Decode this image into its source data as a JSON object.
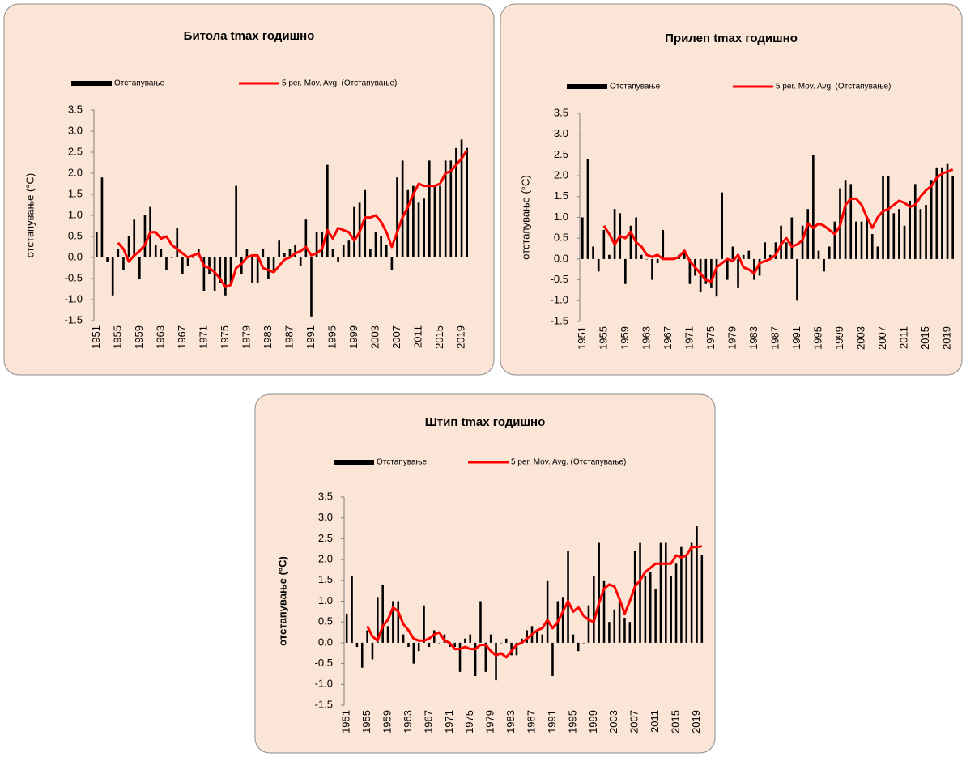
{
  "chart_data": [
    {
      "type": "bar",
      "title": "Битола  tmax годишно",
      "y_label": "отстапување (°C)",
      "categories": [
        "1951",
        null,
        null,
        null,
        "1955",
        null,
        null,
        null,
        "1959",
        null,
        null,
        null,
        "1963",
        null,
        null,
        null,
        "1967",
        null,
        null,
        null,
        "1971",
        null,
        null,
        null,
        "1975",
        null,
        null,
        null,
        "1979",
        null,
        null,
        null,
        "1983",
        null,
        null,
        null,
        "1987",
        null,
        null,
        null,
        "1991",
        null,
        null,
        null,
        "1995",
        null,
        null,
        null,
        "1999",
        null,
        null,
        null,
        "2003",
        null,
        null,
        null,
        "2007",
        null,
        null,
        null,
        "2011",
        null,
        null,
        null,
        "2015",
        null,
        null,
        null,
        "2019",
        null
      ],
      "series": [
        {
          "name": "Отстапување",
          "color": "#000000",
          "type": "bar",
          "values": [
            0.6,
            1.9,
            -0.1,
            -0.9,
            0.2,
            -0.3,
            0.5,
            0.9,
            -0.5,
            1.0,
            1.2,
            0.3,
            0.2,
            -0.3,
            0.0,
            0.7,
            -0.4,
            -0.2,
            0.0,
            0.2,
            -0.8,
            -0.4,
            -0.8,
            -0.6,
            -0.9,
            -0.6,
            1.7,
            -0.4,
            0.2,
            -0.6,
            -0.6,
            0.2,
            -0.5,
            -0.3,
            0.4,
            0.1,
            0.2,
            0.3,
            -0.2,
            0.9,
            -1.4,
            0.6,
            0.6,
            2.2,
            0.2,
            -0.1,
            0.3,
            0.4,
            1.2,
            1.3,
            1.6,
            0.2,
            0.6,
            0.5,
            0.3,
            -0.3,
            1.9,
            2.3,
            1.6,
            1.7,
            1.3,
            1.4,
            2.3,
            1.7,
            1.7,
            2.3,
            2.3,
            2.6,
            2.8,
            2.6
          ]
        },
        {
          "name": "5 per. Mov. Avg. (Отстапување)",
          "color": "#ff0000",
          "type": "line",
          "values": [
            null,
            null,
            null,
            null,
            0.35,
            0.2,
            -0.1,
            0.05,
            0.15,
            0.3,
            0.6,
            0.6,
            0.45,
            0.5,
            0.3,
            0.2,
            0.1,
            0.0,
            0.05,
            0.1,
            -0.2,
            -0.25,
            -0.35,
            -0.5,
            -0.7,
            -0.65,
            -0.25,
            -0.15,
            0.0,
            0.05,
            0.05,
            -0.25,
            -0.3,
            -0.35,
            -0.2,
            -0.05,
            0.0,
            0.1,
            0.15,
            0.25,
            0.05,
            0.1,
            0.2,
            0.65,
            0.45,
            0.7,
            0.65,
            0.6,
            0.4,
            0.6,
            0.95,
            0.95,
            1.0,
            0.85,
            0.6,
            0.25,
            0.6,
            0.95,
            1.2,
            1.5,
            1.75,
            1.7,
            1.7,
            1.7,
            1.75,
            2.0,
            2.05,
            2.2,
            2.35,
            2.55
          ]
        }
      ],
      "ylim": [
        -1.5,
        3.5
      ],
      "yticks": [
        -1.5,
        {
          "value": -1,
          "label": "-1.0"
        },
        -0.5,
        {
          "value": 0,
          "label": "0.0"
        },
        0.5,
        {
          "value": 1,
          "label": "1.0"
        },
        1.5,
        {
          "value": 2,
          "label": "2.0"
        },
        2.5,
        {
          "value": 3,
          "label": "3.0"
        },
        3.5
      ]
    },
    {
      "type": "bar",
      "title": "Прилеп tmax годишно",
      "y_label": "отстапување (°C)",
      "categories": [
        "1951",
        null,
        null,
        null,
        "1955",
        null,
        null,
        null,
        "1959",
        null,
        null,
        null,
        "1963",
        null,
        null,
        null,
        "1967",
        null,
        null,
        null,
        "1971",
        null,
        null,
        null,
        "1975",
        null,
        null,
        null,
        "1979",
        null,
        null,
        null,
        "1983",
        null,
        null,
        null,
        "1987",
        null,
        null,
        null,
        "1991",
        null,
        null,
        null,
        "1995",
        null,
        null,
        null,
        "1999",
        null,
        null,
        null,
        "2003",
        null,
        null,
        null,
        "2007",
        null,
        null,
        null,
        "2011",
        null,
        null,
        null,
        "2015",
        null,
        null,
        null,
        "2019",
        null
      ],
      "series": [
        {
          "name": "Отстапување",
          "color": "#000000",
          "type": "bar",
          "values": [
            1.0,
            2.4,
            0.3,
            -0.3,
            0.7,
            0.1,
            1.2,
            1.1,
            -0.6,
            0.8,
            1.0,
            0.1,
            0.0,
            -0.5,
            -0.1,
            0.7,
            0.0,
            0.0,
            0.1,
            0.2,
            -0.6,
            -0.4,
            -0.8,
            -0.6,
            -0.7,
            -0.9,
            1.6,
            -0.5,
            0.3,
            -0.7,
            0.1,
            0.2,
            -0.5,
            -0.4,
            0.4,
            0.1,
            0.4,
            0.8,
            0.4,
            1.0,
            -1.0,
            0.8,
            1.2,
            2.5,
            0.2,
            -0.3,
            0.3,
            0.9,
            1.7,
            1.9,
            1.8,
            0.9,
            0.9,
            1.0,
            0.6,
            0.3,
            2.0,
            2.0,
            1.1,
            1.2,
            0.8,
            1.4,
            1.8,
            1.2,
            1.3,
            1.9,
            2.2,
            2.2,
            2.3,
            2.0
          ]
        },
        {
          "name": "5 per. Mov. Avg. (Отстапување)",
          "color": "#ff0000",
          "type": "line",
          "values": [
            null,
            null,
            null,
            null,
            0.8,
            0.6,
            0.35,
            0.55,
            0.5,
            0.65,
            0.4,
            0.3,
            0.1,
            0.05,
            0.1,
            0.0,
            0.0,
            0.0,
            0.05,
            0.2,
            -0.05,
            -0.2,
            -0.35,
            -0.5,
            -0.55,
            -0.2,
            -0.1,
            0.0,
            -0.05,
            0.1,
            -0.2,
            -0.25,
            -0.35,
            -0.1,
            -0.05,
            0.0,
            0.1,
            0.35,
            0.5,
            0.3,
            0.35,
            0.45,
            0.85,
            0.75,
            0.85,
            0.8,
            0.7,
            0.6,
            0.8,
            1.3,
            1.45,
            1.45,
            1.3,
            1.0,
            0.75,
            1.0,
            1.15,
            1.2,
            1.3,
            1.4,
            1.35,
            1.25,
            1.3,
            1.5,
            1.65,
            1.75,
            1.95,
            2.05,
            2.1,
            2.15
          ]
        }
      ],
      "ylim": [
        -1.5,
        3.5
      ],
      "yticks": [
        -1.5,
        {
          "value": -1,
          "label": "-1.0"
        },
        -0.5,
        {
          "value": 0,
          "label": "0.0"
        },
        0.5,
        {
          "value": 1,
          "label": "1.0"
        },
        1.5,
        {
          "value": 2,
          "label": "2.0"
        },
        2.5,
        {
          "value": 3,
          "label": "3.0"
        },
        3.5
      ]
    },
    {
      "type": "bar",
      "title": "Штип tmax годишно",
      "y_label": "отстапување (°C)",
      "categories": [
        "1951",
        null,
        null,
        null,
        "1955",
        null,
        null,
        null,
        "1959",
        null,
        null,
        null,
        "1963",
        null,
        null,
        null,
        "1967",
        null,
        null,
        null,
        "1971",
        null,
        null,
        null,
        "1975",
        null,
        null,
        null,
        "1979",
        null,
        null,
        null,
        "1983",
        null,
        null,
        null,
        "1987",
        null,
        null,
        null,
        "1991",
        null,
        null,
        null,
        "1995",
        null,
        null,
        null,
        "1999",
        null,
        null,
        null,
        "2003",
        null,
        null,
        null,
        "2007",
        null,
        null,
        null,
        "2011",
        null,
        null,
        null,
        "2015",
        null,
        null,
        null,
        "2019",
        null
      ],
      "series": [
        {
          "name": "Отстапување",
          "color": "#000000",
          "type": "bar",
          "values": [
            0.7,
            1.6,
            -0.1,
            -0.6,
            0.3,
            -0.4,
            1.1,
            1.4,
            0.4,
            1.0,
            1.0,
            0.2,
            -0.1,
            -0.5,
            -0.2,
            0.9,
            -0.1,
            0.3,
            0.0,
            0.2,
            -0.1,
            -0.1,
            -0.7,
            0.1,
            0.2,
            -0.8,
            1.0,
            -0.7,
            0.2,
            -0.9,
            0.0,
            0.1,
            -0.3,
            -0.3,
            0.1,
            0.3,
            0.4,
            0.3,
            0.2,
            1.5,
            -0.8,
            1.0,
            1.1,
            2.2,
            0.2,
            -0.2,
            0.0,
            0.9,
            1.6,
            2.4,
            1.5,
            0.5,
            0.8,
            1.0,
            0.6,
            0.5,
            2.2,
            2.4,
            1.6,
            1.7,
            1.3,
            2.4,
            2.4,
            1.6,
            1.9,
            2.3,
            2.1,
            2.4,
            2.8,
            2.1
          ]
        },
        {
          "name": "5 per. Mov. Avg. (Отстапување)",
          "color": "#ff0000",
          "type": "line",
          "values": [
            null,
            null,
            null,
            null,
            0.4,
            0.15,
            0.05,
            0.4,
            0.55,
            0.85,
            0.75,
            0.45,
            0.3,
            0.1,
            0.05,
            0.05,
            0.1,
            0.2,
            0.25,
            0.05,
            0.0,
            -0.15,
            -0.15,
            -0.1,
            -0.15,
            -0.15,
            -0.05,
            -0.05,
            -0.2,
            -0.3,
            -0.25,
            -0.35,
            -0.2,
            -0.05,
            0.0,
            0.1,
            0.2,
            0.3,
            0.35,
            0.55,
            0.35,
            0.5,
            0.75,
            1.0,
            0.75,
            0.85,
            0.65,
            0.55,
            0.5,
            0.95,
            1.3,
            1.4,
            1.35,
            1.05,
            0.7,
            1.0,
            1.35,
            1.5,
            1.7,
            1.8,
            1.9,
            1.9,
            1.9,
            1.9,
            2.1,
            2.05,
            2.1,
            2.3,
            2.3,
            2.32
          ]
        }
      ],
      "ylim": [
        -1.5,
        3.5
      ],
      "yticks": [
        -1.5,
        {
          "value": -1,
          "label": "-1.0"
        },
        -0.5,
        {
          "value": 0,
          "label": "0.0"
        },
        0.5,
        {
          "value": 1,
          "label": "1.0"
        },
        1.5,
        {
          "value": 2,
          "label": "2.0"
        },
        2.5,
        {
          "value": 3,
          "label": "3.0"
        },
        3.5
      ]
    }
  ]
}
